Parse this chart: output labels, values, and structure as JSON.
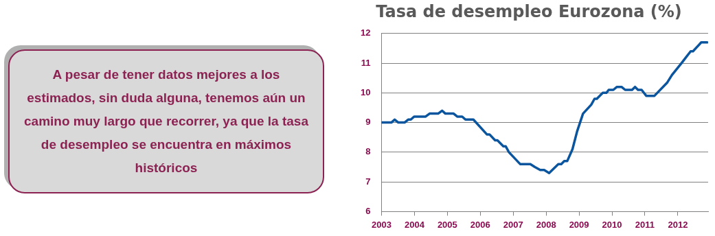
{
  "chart_data": {
    "type": "line",
    "title": "Tasa de desempleo Eurozona (%)",
    "annotations": [
      "A pesar de tener datos mejores a los estimados, sin duda alguna, tenemos aún un camino muy largo que recorrer, ya que la tasa de desempleo se encuentra en máximos históricos"
    ],
    "x": [
      2003.0,
      2003.3,
      2003.4,
      2003.51,
      2003.7,
      2003.81,
      2003.89,
      2003.99,
      2004.34,
      2004.46,
      2004.72,
      2004.84,
      2004.94,
      2005.19,
      2005.3,
      2005.45,
      2005.55,
      2005.79,
      2006.2,
      2006.28,
      2006.45,
      2006.52,
      2006.7,
      2006.77,
      2006.87,
      2007.21,
      2007.52,
      2007.66,
      2007.82,
      2007.94,
      2008.09,
      2008.37,
      2008.46,
      2008.55,
      2008.64,
      2008.8,
      2008.94,
      2009.12,
      2009.37,
      2009.47,
      2009.54,
      2009.72,
      2009.83,
      2009.9,
      2010.04,
      2010.15,
      2010.29,
      2010.4,
      2010.61,
      2010.7,
      2010.79,
      2010.9,
      2011.04,
      2011.29,
      2011.68,
      2011.82,
      2012.11,
      2012.25,
      2012.39,
      2012.46,
      2012.71,
      2012.89
    ],
    "series": [
      {
        "color": "#0b559f",
        "values": [
          9.0,
          9.0,
          9.1,
          9.0,
          9.0,
          9.1,
          9.1,
          9.2,
          9.2,
          9.3,
          9.3,
          9.4,
          9.3,
          9.3,
          9.2,
          9.2,
          9.1,
          9.1,
          8.6,
          8.6,
          8.4,
          8.4,
          8.2,
          8.2,
          8.0,
          7.6,
          7.6,
          7.5,
          7.4,
          7.4,
          7.3,
          7.6,
          7.6,
          7.7,
          7.7,
          8.1,
          8.7,
          9.3,
          9.6,
          9.8,
          9.8,
          10.0,
          10.0,
          10.1,
          10.1,
          10.2,
          10.2,
          10.1,
          10.1,
          10.2,
          10.1,
          10.1,
          9.9,
          9.9,
          10.35,
          10.6,
          11.0,
          11.2,
          11.4,
          11.4,
          11.7,
          11.7
        ]
      }
    ],
    "xlim": [
      2003,
      2012.92
    ],
    "xticks": [
      2003,
      2004,
      2005,
      2006,
      2007,
      2008,
      2009,
      2010,
      2011,
      2012
    ],
    "ylim": [
      6,
      12
    ],
    "yticks": [
      6,
      7,
      8,
      9,
      10,
      11,
      12
    ],
    "grid": "y",
    "legend": false,
    "marker": "none",
    "line_style": "solid"
  }
}
